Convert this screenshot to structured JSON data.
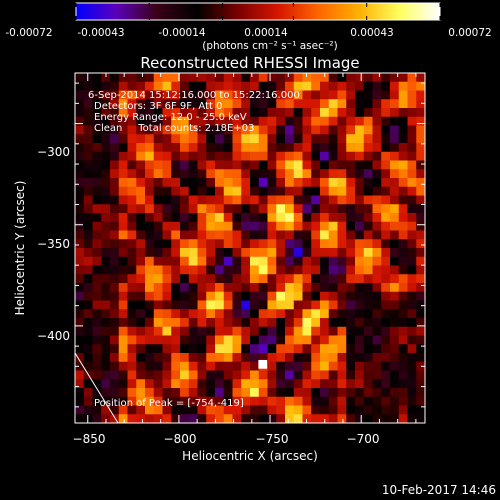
{
  "colorbar": {
    "tick_labels": [
      "-0.00072",
      "-0.00043",
      "-0.00014",
      "0.00014",
      "0.00043",
      "0.00072"
    ],
    "tick_values": [
      -0.00072,
      -0.00043,
      -0.00014,
      0.00014,
      0.00043,
      0.00072
    ],
    "range": [
      -0.00072,
      0.00072
    ],
    "units": "(photons cm⁻² s⁻¹ asec⁻²)",
    "colors": [
      "#0000ff",
      "#5b00b8",
      "#3a0016",
      "#000000",
      "#7a0000",
      "#d61600",
      "#ff6600",
      "#ffb000",
      "#ffff60",
      "#ffffff"
    ]
  },
  "chart_data": {
    "type": "heatmap",
    "title": "Reconstructed RHESSI Image",
    "xlabel": "Heliocentric X (arcsec)",
    "ylabel": "Heliocentric Y (arcsec)",
    "xlim": [
      -857,
      -665
    ],
    "ylim": [
      -448,
      -275
    ],
    "x_ticks": [
      -850,
      -800,
      -750,
      -700
    ],
    "y_ticks": [
      -300,
      -350,
      -400
    ],
    "x_tick_labels": [
      "−850",
      "−800",
      "−750",
      "−700"
    ],
    "y_tick_labels": [
      "−300",
      "−350",
      "−400"
    ],
    "info_lines": [
      "6-Sep-2014 15:12:16.000 to 15:22:16.000",
      "Detectors: 3F 6F 9F, Att 0",
      "Energy Range: 12.0 - 25.0 keV",
      "Clean     Total counts: 2.18E+03"
    ],
    "peak_label": "Position of Peak = [-754,-419]",
    "peak": [
      -754,
      -419
    ],
    "grid": false
  },
  "footer": {
    "timestamp": "10-Feb-2017 14:46"
  }
}
